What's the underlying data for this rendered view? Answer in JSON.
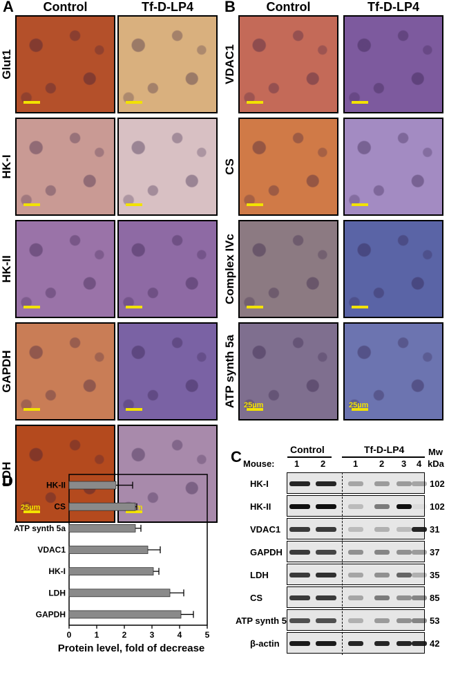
{
  "panel_a": {
    "letter": "A",
    "columns": [
      "Control",
      "Tf-D-LP4"
    ],
    "rows": [
      {
        "label": "Glut1",
        "control": "#b4502a",
        "treated": "#d9b07e"
      },
      {
        "label": "HK-I",
        "control": "#c99a94",
        "treated": "#d8c0c3"
      },
      {
        "label": "HK-II",
        "control": "#9a73a8",
        "treated": "#8e6aa4"
      },
      {
        "label": "GAPDH",
        "control": "#c97d56",
        "treated": "#7a62a4"
      },
      {
        "label": "LDH",
        "control": "#b44a1e",
        "treated": "#a88aab"
      }
    ],
    "scale_label": "25µm"
  },
  "panel_b": {
    "letter": "B",
    "columns": [
      "Control",
      "Tf-D-LP4"
    ],
    "rows": [
      {
        "label": "VDAC1",
        "control": "#c46a58",
        "treated": "#7d5a9e"
      },
      {
        "label": "CS",
        "control": "#d07a47",
        "treated": "#a38bc2"
      },
      {
        "label": "Complex IVc",
        "control": "#8c7a82",
        "treated": "#5a64a6"
      },
      {
        "label": "ATP synth 5a",
        "control": "#7f6f8f",
        "treated": "#6c74b0"
      }
    ],
    "scale_label": "25µm"
  },
  "panel_c": {
    "letter": "C",
    "group_control": "Control",
    "group_treated": "Tf-D-LP4",
    "mouse_label": "Mouse:",
    "mouse_numbers": [
      "1",
      "2",
      "1",
      "2",
      "3",
      "4"
    ],
    "mw_label": "Mw",
    "kda_label": "kDa",
    "blots": [
      {
        "label": "HK-I",
        "mw": "102",
        "intensity": [
          0.9,
          0.9,
          0.3,
          0.35,
          0.35,
          0.3
        ]
      },
      {
        "label": "HK-II",
        "mw": "102",
        "intensity": [
          1.0,
          1.0,
          0.2,
          0.5,
          1.0,
          0.05
        ]
      },
      {
        "label": "VDAC1",
        "mw": "31",
        "intensity": [
          0.8,
          0.8,
          0.2,
          0.25,
          0.2,
          0.9
        ]
      },
      {
        "label": "GAPDH",
        "mw": "37",
        "intensity": [
          0.8,
          0.75,
          0.4,
          0.45,
          0.4,
          0.35
        ]
      },
      {
        "label": "LDH",
        "mw": "35",
        "intensity": [
          0.8,
          0.85,
          0.3,
          0.4,
          0.6,
          0.25
        ]
      },
      {
        "label": "CS",
        "mw": "85",
        "intensity": [
          0.8,
          0.8,
          0.3,
          0.5,
          0.4,
          0.45
        ]
      },
      {
        "label": "ATP synth 5a",
        "mw": "53",
        "intensity": [
          0.7,
          0.7,
          0.25,
          0.35,
          0.4,
          0.45
        ]
      },
      {
        "label": "β-actin",
        "mw": "42",
        "intensity": [
          0.95,
          0.95,
          0.9,
          0.9,
          0.9,
          0.9
        ]
      }
    ]
  },
  "panel_d": {
    "letter": "D",
    "chart_data": {
      "type": "bar",
      "orientation": "horizontal",
      "categories": [
        "HK-II",
        "CS",
        "ATP synth 5a",
        "VDAC1",
        "HK-I",
        "LDH",
        "GAPDH"
      ],
      "values": [
        1.7,
        2.4,
        2.4,
        2.85,
        3.05,
        3.65,
        4.05
      ],
      "errors": [
        0.6,
        0.05,
        0.2,
        0.45,
        0.2,
        0.5,
        0.45
      ],
      "xlabel": "Protein level, fold of decrease",
      "xlim": [
        0,
        5
      ],
      "xticks": [
        "0",
        "1",
        "2",
        "3",
        "4",
        "5"
      ],
      "bar_color": "#8a8a8a"
    }
  }
}
